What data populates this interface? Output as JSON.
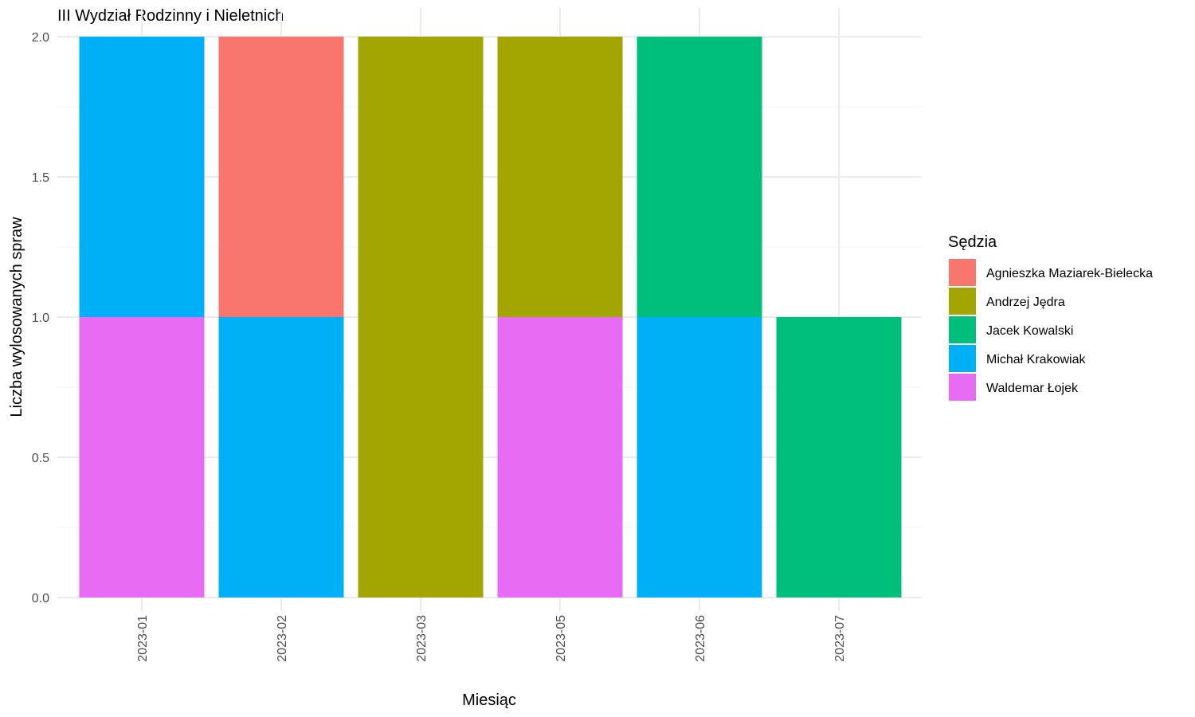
{
  "chart_data": {
    "type": "bar",
    "stacked": true,
    "title": "III Wydział Rodzinny i Nieletnich",
    "xlabel": "Miesiąc",
    "ylabel": "Liczba wylosowanych spraw",
    "ylim": [
      0,
      2
    ],
    "yticks": [
      "0.0",
      "0.5",
      "1.0",
      "1.5",
      "2.0"
    ],
    "grid": true,
    "categories": [
      "2023-01",
      "2023-02",
      "2023-03",
      "2023-05",
      "2023-06",
      "2023-07"
    ],
    "legend": {
      "title": "Sędzia",
      "placement": "right"
    },
    "series": [
      {
        "name": "Agnieszka Maziarek-Bielecka",
        "color": "#F8766D",
        "values": [
          0,
          1,
          0,
          0,
          0,
          0
        ]
      },
      {
        "name": "Andrzej Jędra",
        "color": "#A3A500",
        "values": [
          0,
          0,
          2,
          1,
          0,
          0
        ]
      },
      {
        "name": "Jacek Kowalski",
        "color": "#00BF7D",
        "values": [
          0,
          0,
          0,
          0,
          1,
          1
        ]
      },
      {
        "name": "Michał Krakowiak",
        "color": "#00B0F6",
        "values": [
          1,
          1,
          0,
          0,
          1,
          0
        ]
      },
      {
        "name": "Waldemar Łojek",
        "color": "#E76BF3",
        "values": [
          1,
          0,
          0,
          1,
          0,
          0
        ]
      }
    ]
  }
}
